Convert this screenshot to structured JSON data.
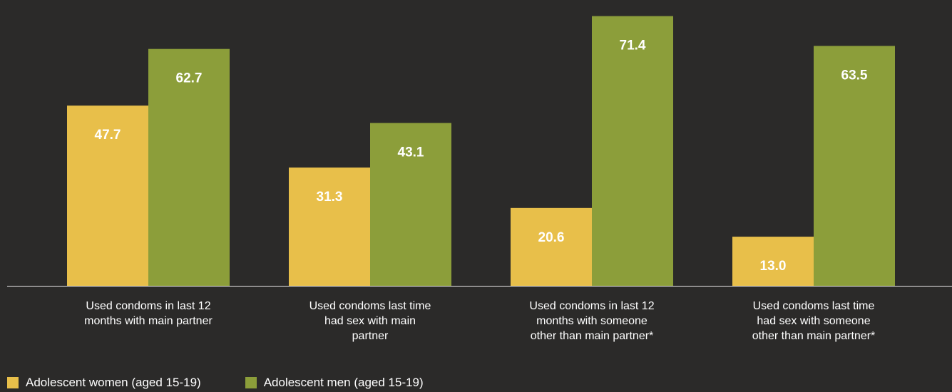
{
  "chart_data": {
    "type": "bar",
    "categories": [
      [
        "Used condoms in last 12",
        "months with main partner"
      ],
      [
        "Used condoms last time",
        "had sex with main",
        "partner"
      ],
      [
        "Used condoms in last 12",
        "months with someone",
        "other than main partner*"
      ],
      [
        "Used condoms last time",
        "had sex with someone",
        "other than main partner*"
      ]
    ],
    "series": [
      {
        "name": "Adolescent women (aged 15-19)",
        "color": "#e8bf4a",
        "values": [
          47.7,
          31.3,
          20.6,
          13.0
        ]
      },
      {
        "name": "Adolescent men (aged 15-19)",
        "color": "#8c9e3a",
        "values": [
          62.7,
          43.1,
          71.4,
          63.5
        ]
      }
    ],
    "value_labels": [
      [
        "47.7",
        "31.3",
        "20.6",
        "13.0"
      ],
      [
        "62.7",
        "43.1",
        "71.4",
        "63.5"
      ]
    ],
    "ylim": [
      0,
      75
    ],
    "legend_position": "bottom-left",
    "grid": false,
    "background": "#2b2a29"
  }
}
